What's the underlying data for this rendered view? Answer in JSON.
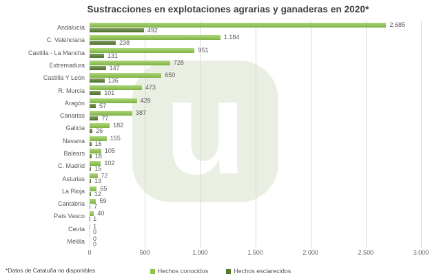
{
  "title": "Sustracciones en explotaciones agrarias y ganaderas en 2020*",
  "footnote": "*Datos de Cataluña no disponibles",
  "watermark": {
    "letter": "u",
    "color": "#e9efe2",
    "letter_color": "#ffffff"
  },
  "colors": {
    "conocidos": "#8dc649",
    "esclarecidos": "#53792b",
    "grid": "#d9d9d9",
    "axis_text": "#595959",
    "title_text": "#3f3f3f"
  },
  "chart_data": {
    "type": "bar",
    "orientation": "horizontal",
    "title": "Sustracciones en explotaciones agrarias y ganaderas en 2020*",
    "categories": [
      "Andalucía",
      "C. Valenciana",
      "Castilla - La Mancha",
      "Extremadura",
      "Castilla Y León",
      "R. Murcia",
      "Aragón",
      "Canarias",
      "Galicia",
      "Navarra",
      "Balears",
      "C. Madrid",
      "Asturias",
      "La Rioja",
      "Cantabria",
      "País Vasco",
      "Ceuta",
      "Melilla"
    ],
    "series": [
      {
        "name": "Hechos conocidos",
        "color": "#8dc649",
        "values": [
          2685,
          1184,
          951,
          728,
          650,
          473,
          428,
          387,
          182,
          155,
          105,
          102,
          72,
          65,
          59,
          40,
          1,
          0
        ],
        "labels": [
          "2.685",
          "1.184",
          "951",
          "728",
          "650",
          "473",
          "428",
          "387",
          "182",
          "155",
          "105",
          "102",
          "72",
          "65",
          "59",
          "40",
          "1",
          "0"
        ]
      },
      {
        "name": "Hechos esclarecidos",
        "color": "#53792b",
        "values": [
          492,
          238,
          131,
          147,
          136,
          101,
          57,
          77,
          26,
          16,
          18,
          15,
          13,
          12,
          7,
          1,
          0,
          0
        ],
        "labels": [
          "492",
          "238",
          "131",
          "147",
          "136",
          "101",
          "57",
          "77",
          "26",
          "16",
          "18",
          "15",
          "13",
          "12",
          "7",
          "1",
          "0",
          "0"
        ]
      }
    ],
    "xlim": [
      0,
      3000
    ],
    "xticks": {
      "values": [
        0,
        500,
        1000,
        1500,
        2000,
        2500,
        3000
      ],
      "labels": [
        "0",
        "500",
        "1.000",
        "1.500",
        "2.000",
        "2.500",
        "3.000"
      ]
    },
    "grid": true,
    "legend_position": "bottom"
  }
}
